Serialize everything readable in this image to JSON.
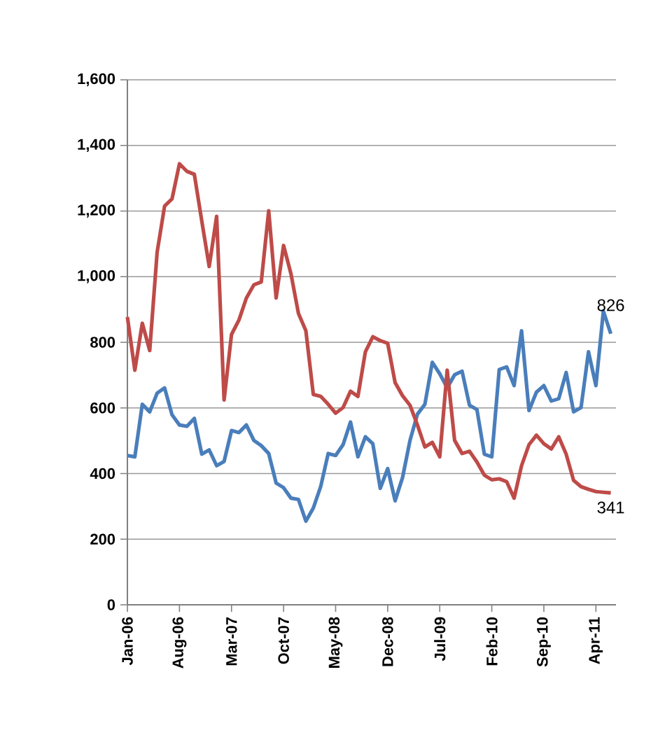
{
  "chart_data": {
    "type": "line",
    "categories": [
      "Jan-06",
      null,
      null,
      null,
      null,
      null,
      null,
      "Aug-06",
      null,
      null,
      null,
      null,
      null,
      null,
      "Mar-07",
      null,
      null,
      null,
      null,
      null,
      null,
      "Oct-07",
      null,
      null,
      null,
      null,
      null,
      null,
      "May-08",
      null,
      null,
      null,
      null,
      null,
      null,
      "Dec-08",
      null,
      null,
      null,
      null,
      null,
      null,
      "Jul-09",
      null,
      null,
      null,
      null,
      null,
      null,
      "Feb-10",
      null,
      null,
      null,
      null,
      null,
      null,
      "Sep-10",
      null,
      null,
      null,
      null,
      null,
      null,
      "Apr-11",
      null,
      null
    ],
    "series": [
      {
        "color": "#4a7ebb",
        "values": [
          455,
          451,
          611,
          588,
          645,
          661,
          579,
          548,
          544,
          568,
          459,
          472,
          424,
          437,
          531,
          525,
          548,
          501,
          485,
          461,
          371,
          357,
          325,
          321,
          255,
          295,
          361,
          461,
          455,
          488,
          557,
          451,
          512,
          491,
          355,
          415,
          317,
          388,
          501,
          581,
          611,
          739,
          704,
          661,
          701,
          712,
          608,
          595,
          459,
          451,
          717,
          725,
          668,
          835,
          592,
          648,
          668,
          621,
          628,
          708,
          588,
          601,
          771,
          668,
          895,
          826
        ]
      },
      {
        "color": "#be4b48",
        "values": [
          877,
          715,
          858,
          775,
          1075,
          1215,
          1237,
          1344,
          1321,
          1312,
          1170,
          1031,
          1184,
          624,
          824,
          868,
          935,
          975,
          984,
          1201,
          935,
          1095,
          1008,
          888,
          835,
          641,
          635,
          611,
          584,
          601,
          651,
          635,
          771,
          817,
          805,
          797,
          677,
          637,
          608,
          548,
          481,
          495,
          451,
          715,
          501,
          461,
          468,
          435,
          395,
          381,
          384,
          375,
          325,
          424,
          488,
          517,
          491,
          475,
          512,
          459,
          379,
          360,
          352,
          345,
          343,
          341
        ]
      }
    ],
    "ylim": [
      0,
      1600
    ],
    "yticks": [
      0,
      200,
      400,
      600,
      800,
      {
        "value": 1000,
        "label": "1,000"
      },
      {
        "value": 1200,
        "label": "1,200"
      },
      {
        "value": 1400,
        "label": "1,400"
      },
      {
        "value": 1600,
        "label": "1,600"
      }
    ],
    "grid": "y",
    "marker": "none",
    "line_style": "solid",
    "annotations": [
      {
        "text": "826",
        "y": 826
      },
      {
        "text": "341",
        "y": 341
      }
    ]
  }
}
